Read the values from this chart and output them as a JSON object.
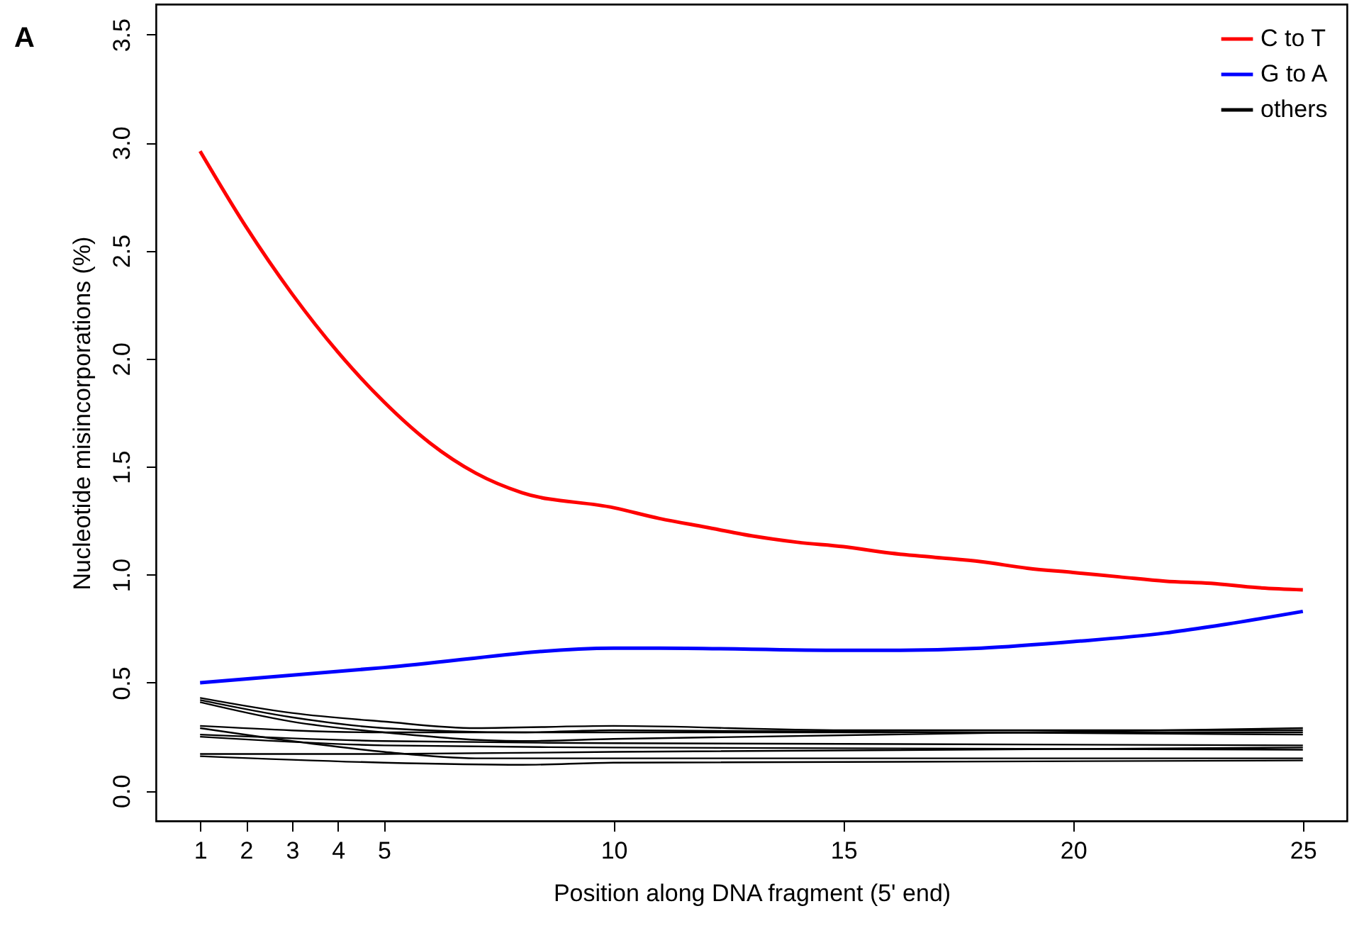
{
  "chart_data": {
    "type": "line",
    "xlabel": "Position along DNA fragment (5' end)",
    "ylabel": "Nucleotide misincorporations (%)",
    "annotations": [
      "A"
    ],
    "xlim": [
      0.04,
      25.96
    ],
    "xticks": [
      1,
      2,
      3,
      4,
      5,
      10,
      15,
      20,
      25
    ],
    "ylim": [
      -0.14,
      3.64
    ],
    "yticks": [
      {
        "value": 0,
        "label": "0.0"
      },
      0.5,
      {
        "value": 1,
        "label": "1.0"
      },
      1.5,
      {
        "value": 2,
        "label": "2.0"
      },
      2.5,
      {
        "value": 3,
        "label": "3.0"
      },
      3.5
    ],
    "grid": false,
    "legend": "top right",
    "marker": "none",
    "line_style": "solid",
    "series": [
      {
        "name": "C to T",
        "color": "#ff0000",
        "x": [
          1,
          2,
          3,
          4,
          5,
          6,
          7,
          8,
          10,
          11,
          12,
          13,
          14,
          15,
          16,
          17,
          18,
          19,
          20,
          21,
          22,
          23,
          24,
          25
        ],
        "values": [
          2.96,
          2.61,
          2.3,
          2.03,
          1.8,
          1.61,
          1.47,
          1.38,
          1.31,
          1.26,
          1.22,
          1.18,
          1.15,
          1.13,
          1.1,
          1.08,
          1.06,
          1.03,
          1.01,
          0.99,
          0.97,
          0.96,
          0.94,
          0.93
        ]
      },
      {
        "name": "G to A",
        "color": "#0000ff",
        "x": [
          1,
          5,
          10,
          11,
          15,
          16,
          18,
          20,
          22,
          23,
          25
        ],
        "values": [
          0.5,
          0.57,
          0.66,
          0.66,
          0.65,
          0.65,
          0.66,
          0.69,
          0.73,
          0.76,
          0.83
        ]
      },
      {
        "name": "others",
        "color": "#000000",
        "x": [
          1,
          3,
          5,
          7,
          10,
          15,
          25
        ],
        "values": [
          0.43,
          0.36,
          0.32,
          0.29,
          0.3,
          0.28,
          0.28
        ]
      },
      {
        "color": "#000000",
        "x": [
          1,
          3,
          5,
          8,
          10,
          25
        ],
        "values": [
          0.42,
          0.34,
          0.29,
          0.27,
          0.28,
          0.26
        ]
      },
      {
        "color": "#000000",
        "x": [
          1,
          3,
          5,
          8,
          10,
          25
        ],
        "values": [
          0.41,
          0.32,
          0.27,
          0.23,
          0.24,
          0.29
        ]
      },
      {
        "color": "#000000",
        "x": [
          1,
          5,
          10,
          25
        ],
        "values": [
          0.3,
          0.27,
          0.27,
          0.27
        ]
      },
      {
        "color": "#000000",
        "x": [
          1,
          3,
          5,
          7,
          10,
          25
        ],
        "values": [
          0.29,
          0.23,
          0.18,
          0.15,
          0.15,
          0.15
        ]
      },
      {
        "color": "#000000",
        "x": [
          1,
          5,
          10,
          25
        ],
        "values": [
          0.26,
          0.23,
          0.22,
          0.21
        ]
      },
      {
        "color": "#000000",
        "x": [
          1,
          5,
          10,
          25
        ],
        "values": [
          0.25,
          0.21,
          0.2,
          0.19
        ]
      },
      {
        "color": "#000000",
        "x": [
          1,
          5,
          10,
          25
        ],
        "values": [
          0.17,
          0.17,
          0.18,
          0.2
        ]
      },
      {
        "color": "#000000",
        "x": [
          1,
          5,
          8,
          10,
          25
        ],
        "values": [
          0.16,
          0.13,
          0.12,
          0.13,
          0.14
        ]
      }
    ]
  }
}
